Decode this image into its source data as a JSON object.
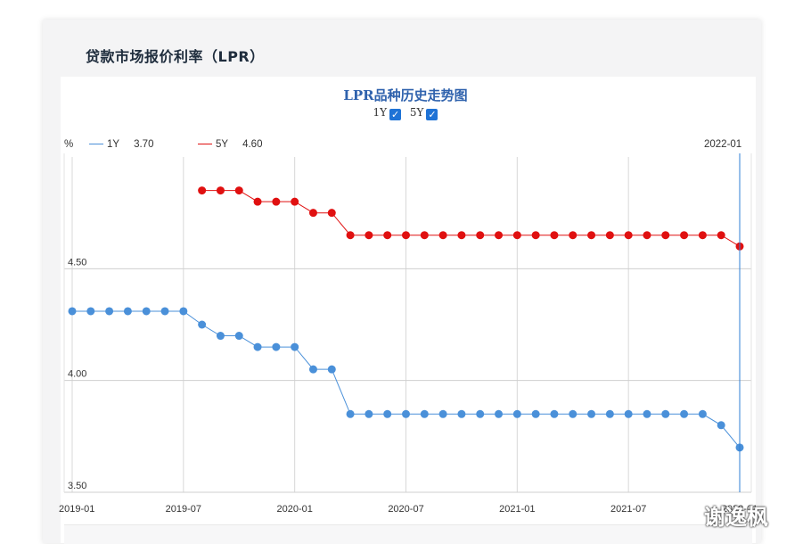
{
  "card": {
    "title": "贷款市场报价利率（LPR）"
  },
  "chart_data": {
    "type": "line",
    "title": "LPR品种历史走势图",
    "unit_label": "%",
    "toggles": [
      {
        "label": "1Y",
        "checked": true
      },
      {
        "label": "5Y",
        "checked": true
      }
    ],
    "crosshair": {
      "date": "2022-01",
      "values": [
        "3.70",
        "4.60"
      ]
    },
    "x_tick_labels": [
      "2019-01",
      "2019-07",
      "2020-01",
      "2020-07",
      "2021-01",
      "2021-07",
      "2022-01"
    ],
    "y_tick_labels": [
      "4.50",
      "4.00",
      "3.50"
    ],
    "ylim": [
      3.5,
      5.0
    ],
    "grid": true,
    "x_dates": [
      "2019-01",
      "2019-02",
      "2019-03",
      "2019-04",
      "2019-05",
      "2019-06",
      "2019-07",
      "2019-08",
      "2019-09",
      "2019-10",
      "2019-11",
      "2019-12",
      "2020-01",
      "2020-02",
      "2020-03",
      "2020-04",
      "2020-05",
      "2020-06",
      "2020-07",
      "2020-08",
      "2020-09",
      "2020-10",
      "2020-11",
      "2020-12",
      "2021-01",
      "2021-02",
      "2021-03",
      "2021-04",
      "2021-05",
      "2021-06",
      "2021-07",
      "2021-08",
      "2021-09",
      "2021-10",
      "2021-11",
      "2021-12",
      "2022-01"
    ],
    "series": [
      {
        "name": "1Y",
        "color": "#4a90d9",
        "values": [
          4.31,
          4.31,
          4.31,
          4.31,
          4.31,
          4.31,
          4.31,
          4.25,
          4.2,
          4.2,
          4.15,
          4.15,
          4.15,
          4.05,
          4.05,
          3.85,
          3.85,
          3.85,
          3.85,
          3.85,
          3.85,
          3.85,
          3.85,
          3.85,
          3.85,
          3.85,
          3.85,
          3.85,
          3.85,
          3.85,
          3.85,
          3.85,
          3.85,
          3.85,
          3.85,
          3.8,
          3.7
        ]
      },
      {
        "name": "5Y",
        "color": "#e01010",
        "values": [
          null,
          null,
          null,
          null,
          null,
          null,
          null,
          4.85,
          4.85,
          4.85,
          4.8,
          4.8,
          4.8,
          4.75,
          4.75,
          4.65,
          4.65,
          4.65,
          4.65,
          4.65,
          4.65,
          4.65,
          4.65,
          4.65,
          4.65,
          4.65,
          4.65,
          4.65,
          4.65,
          4.65,
          4.65,
          4.65,
          4.65,
          4.65,
          4.65,
          4.65,
          4.6
        ]
      }
    ]
  },
  "watermark": {
    "text": "谢逸枫"
  }
}
